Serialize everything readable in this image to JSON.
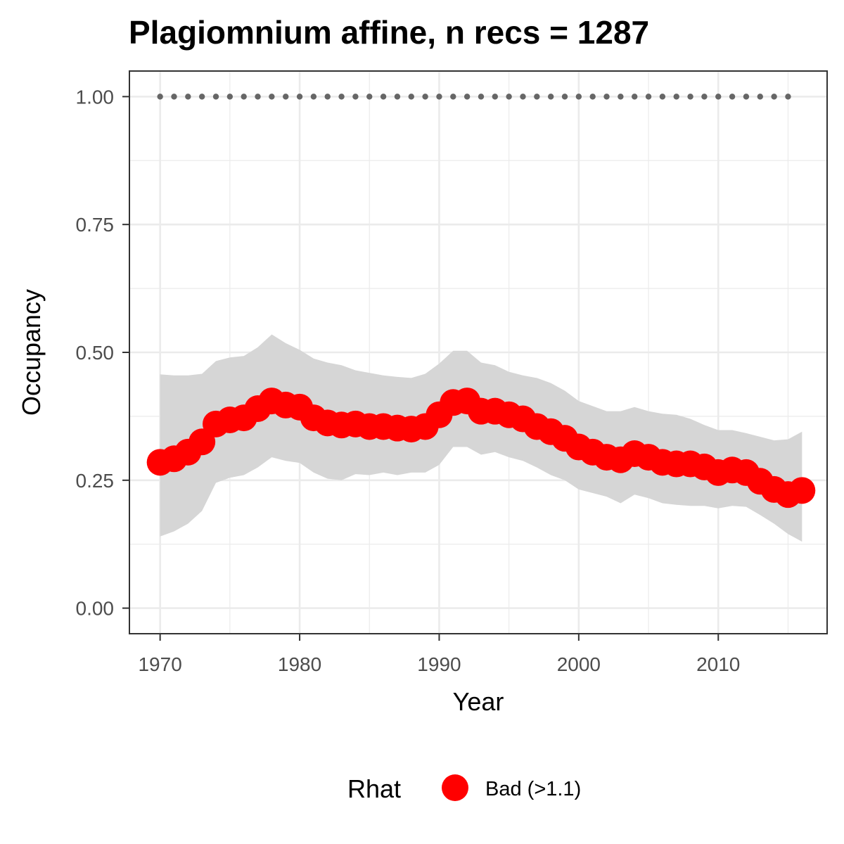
{
  "chart_data": {
    "type": "line",
    "title": "Plagiomnium affine, n recs = 1287",
    "xlabel": "Year",
    "ylabel": "Occupancy",
    "xlim": [
      1967.8,
      2017.8
    ],
    "ylim": [
      -0.05,
      1.05
    ],
    "x_ticks": [
      1970,
      1980,
      1990,
      2000,
      2010
    ],
    "x_tick_labels": [
      "1970",
      "1980",
      "1990",
      "2000",
      "2010"
    ],
    "y_ticks": [
      0,
      0.25,
      0.5,
      0.75,
      1.0
    ],
    "y_tick_labels": [
      "0.00",
      "0.25",
      "0.50",
      "0.75",
      "1.00"
    ],
    "grid": true,
    "legend": {
      "position": "bottom",
      "title": "Rhat",
      "entries": [
        {
          "label": "Bad (>1.1)",
          "color": "#ff0000"
        }
      ]
    },
    "colors": {
      "estimate": "#ff0000",
      "ribbon": "#d6d6d6",
      "reference": "#666666"
    },
    "x": [
      1970,
      1971,
      1972,
      1973,
      1974,
      1975,
      1976,
      1977,
      1978,
      1979,
      1980,
      1981,
      1982,
      1983,
      1984,
      1985,
      1986,
      1987,
      1988,
      1989,
      1990,
      1991,
      1992,
      1993,
      1994,
      1995,
      1996,
      1997,
      1998,
      1999,
      2000,
      2001,
      2002,
      2003,
      2004,
      2005,
      2006,
      2007,
      2008,
      2009,
      2010,
      2011,
      2012,
      2013,
      2014,
      2015,
      2016
    ],
    "series": [
      {
        "name": "Bad (>1.1)",
        "type": "line",
        "values": [
          0.285,
          0.292,
          0.305,
          0.325,
          0.36,
          0.368,
          0.372,
          0.39,
          0.405,
          0.397,
          0.393,
          0.372,
          0.362,
          0.358,
          0.36,
          0.355,
          0.355,
          0.352,
          0.35,
          0.355,
          0.378,
          0.402,
          0.405,
          0.385,
          0.385,
          0.378,
          0.37,
          0.355,
          0.345,
          0.332,
          0.315,
          0.305,
          0.295,
          0.29,
          0.302,
          0.295,
          0.285,
          0.282,
          0.282,
          0.276,
          0.265,
          0.27,
          0.265,
          0.248,
          0.232,
          0.222,
          0.23
        ]
      },
      {
        "type": "ribbon",
        "lower": [
          0.14,
          0.15,
          0.165,
          0.19,
          0.245,
          0.255,
          0.26,
          0.275,
          0.295,
          0.288,
          0.284,
          0.265,
          0.253,
          0.25,
          0.262,
          0.26,
          0.265,
          0.26,
          0.265,
          0.265,
          0.28,
          0.315,
          0.315,
          0.3,
          0.305,
          0.295,
          0.288,
          0.275,
          0.26,
          0.25,
          0.232,
          0.225,
          0.218,
          0.205,
          0.222,
          0.215,
          0.205,
          0.202,
          0.2,
          0.2,
          0.195,
          0.2,
          0.198,
          0.182,
          0.165,
          0.145,
          0.13
        ],
        "upper": [
          0.457,
          0.455,
          0.455,
          0.458,
          0.483,
          0.49,
          0.493,
          0.51,
          0.535,
          0.518,
          0.505,
          0.488,
          0.48,
          0.475,
          0.465,
          0.46,
          0.455,
          0.452,
          0.45,
          0.458,
          0.478,
          0.503,
          0.503,
          0.48,
          0.475,
          0.462,
          0.455,
          0.45,
          0.44,
          0.425,
          0.405,
          0.395,
          0.385,
          0.385,
          0.393,
          0.385,
          0.38,
          0.378,
          0.37,
          0.358,
          0.348,
          0.348,
          0.342,
          0.335,
          0.328,
          0.33,
          0.345
        ]
      },
      {
        "type": "reference-points",
        "x": [
          1970,
          1971,
          1972,
          1973,
          1974,
          1975,
          1976,
          1977,
          1978,
          1979,
          1980,
          1981,
          1982,
          1983,
          1984,
          1985,
          1986,
          1987,
          1988,
          1989,
          1990,
          1991,
          1992,
          1993,
          1994,
          1995,
          1996,
          1997,
          1998,
          1999,
          2000,
          2001,
          2002,
          2003,
          2004,
          2005,
          2006,
          2007,
          2008,
          2009,
          2010,
          2011,
          2012,
          2013,
          2014,
          2015
        ],
        "value": 1.0
      }
    ]
  }
}
